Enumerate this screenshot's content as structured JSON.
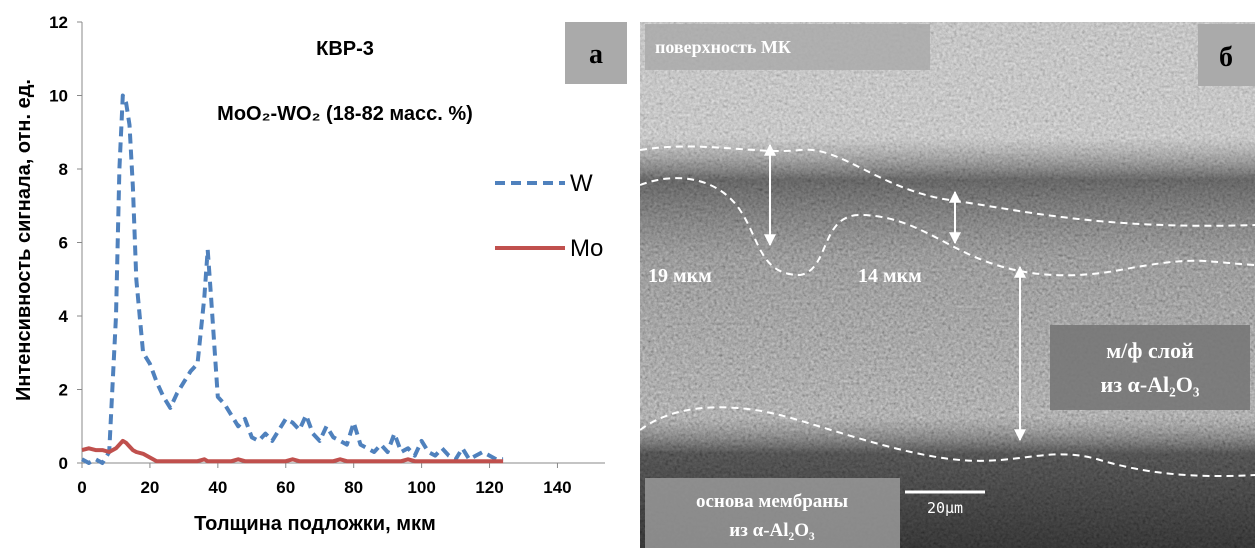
{
  "chart_data": {
    "type": "line",
    "title": "КВР-3",
    "subtitle": "MoO₂-WO₂ (18-82 масс. %)",
    "panel_label": "а",
    "x_label": "Толщина подложки, мкм",
    "y_label": "Интенсивность сигнала, отн. ед.",
    "xlim": [
      0,
      154
    ],
    "xticks": [
      0,
      20,
      40,
      60,
      80,
      100,
      120,
      140
    ],
    "ylim": [
      0,
      12
    ],
    "yticks": [
      0,
      2,
      4,
      6,
      8,
      10,
      12
    ],
    "legend": "right",
    "x": [
      0,
      2,
      4,
      6,
      8,
      10,
      11,
      12,
      13,
      14,
      15,
      16,
      18,
      20,
      22,
      24,
      26,
      28,
      30,
      32,
      34,
      36,
      37,
      38,
      40,
      42,
      44,
      46,
      48,
      50,
      52,
      54,
      56,
      58,
      60,
      62,
      64,
      66,
      68,
      70,
      72,
      74,
      76,
      78,
      80,
      82,
      84,
      86,
      88,
      90,
      92,
      94,
      96,
      98,
      100,
      102,
      104,
      106,
      108,
      110,
      112,
      114,
      116,
      118,
      120,
      122,
      124
    ],
    "series": [
      {
        "name": "W",
        "color": "#4f81bd",
        "dash": true,
        "values": [
          0.1,
          0,
          0.1,
          0,
          0.3,
          4,
          8,
          10,
          9.8,
          9.2,
          7.5,
          5,
          3,
          2.7,
          2.2,
          1.8,
          1.5,
          1.9,
          2.2,
          2.5,
          2.7,
          4.5,
          5.8,
          4.5,
          1.8,
          1.6,
          1.3,
          1.0,
          1.2,
          0.7,
          0.6,
          0.8,
          0.6,
          0.9,
          1.2,
          1.1,
          0.9,
          1.3,
          0.8,
          0.6,
          1.0,
          0.7,
          0.6,
          0.5,
          1.1,
          0.5,
          0.4,
          0.3,
          0.5,
          0.3,
          0.8,
          0.3,
          0.4,
          0.2,
          0.6,
          0.3,
          0.2,
          0.4,
          0.2,
          0.1,
          0.4,
          0.1,
          0.2,
          0.3,
          0.2,
          0.1,
          0.1
        ]
      },
      {
        "name": "Mo",
        "color": "#c0504d",
        "dash": false,
        "values": [
          0.35,
          0.4,
          0.35,
          0.35,
          0.3,
          0.4,
          0.5,
          0.6,
          0.55,
          0.45,
          0.35,
          0.3,
          0.25,
          0.15,
          0.05,
          0.05,
          0.05,
          0.05,
          0.05,
          0.05,
          0.05,
          0.1,
          0.05,
          0.05,
          0.05,
          0.05,
          0.05,
          0.1,
          0.05,
          0.05,
          0.05,
          0.05,
          0.05,
          0.05,
          0.05,
          0.1,
          0.05,
          0.05,
          0.05,
          0.05,
          0.05,
          0.05,
          0.1,
          0.05,
          0.05,
          0.05,
          0.05,
          0.05,
          0.05,
          0.05,
          0.05,
          0.05,
          0.1,
          0.05,
          0.05,
          0.05,
          0.05,
          0.05,
          0.05,
          0.05,
          0.05,
          0.05,
          0.05,
          0.05,
          0.05,
          0.05,
          0.05
        ]
      }
    ]
  },
  "image_panel": {
    "panel_label": "б",
    "surface_label": "поверхность МК",
    "thickness_labels": [
      "19 мкм",
      "14 мкм"
    ],
    "layer_label": [
      "м/ф слой",
      "из α-Al₂O₃"
    ],
    "base_label": [
      "основа мембраны",
      "из α-Al₂O₃"
    ],
    "scale_bar": "20µm"
  }
}
